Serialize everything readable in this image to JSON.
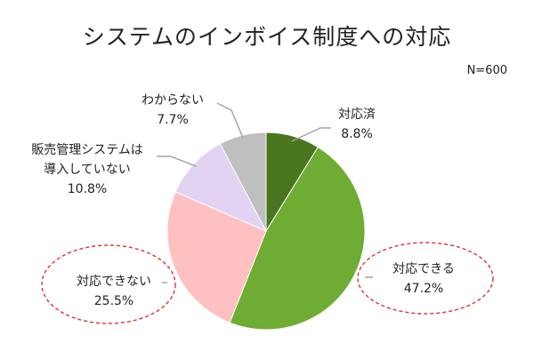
{
  "chart_data": {
    "type": "pie",
    "title": "システムのインボイス制度への対応",
    "note": "N=600",
    "start_angle_deg": 0,
    "direction": "clockwise",
    "slices": [
      {
        "label": "対応済",
        "label_lines": [
          "対応済"
        ],
        "value": 8.8,
        "value_text": "8.8%",
        "color": "#4a7620"
      },
      {
        "label": "対応できる",
        "label_lines": [
          "対応できる"
        ],
        "value": 47.2,
        "value_text": "47.2%",
        "color": "#6fac33",
        "highlight": true
      },
      {
        "label": "対応できない",
        "label_lines": [
          "対応できない"
        ],
        "value": 25.5,
        "value_text": "25.5%",
        "color": "#ffc0c2",
        "highlight": true
      },
      {
        "label": "販売管理システムは導入していない",
        "label_lines": [
          "販売管理システムは",
          "導入していない"
        ],
        "value": 10.8,
        "value_text": "10.8%",
        "color": "#e2d3f3"
      },
      {
        "label": "わからない",
        "label_lines": [
          "わからない"
        ],
        "value": 7.7,
        "value_text": "7.7%",
        "color": "#bfbfbf"
      }
    ],
    "highlight_color": "#e03030"
  }
}
